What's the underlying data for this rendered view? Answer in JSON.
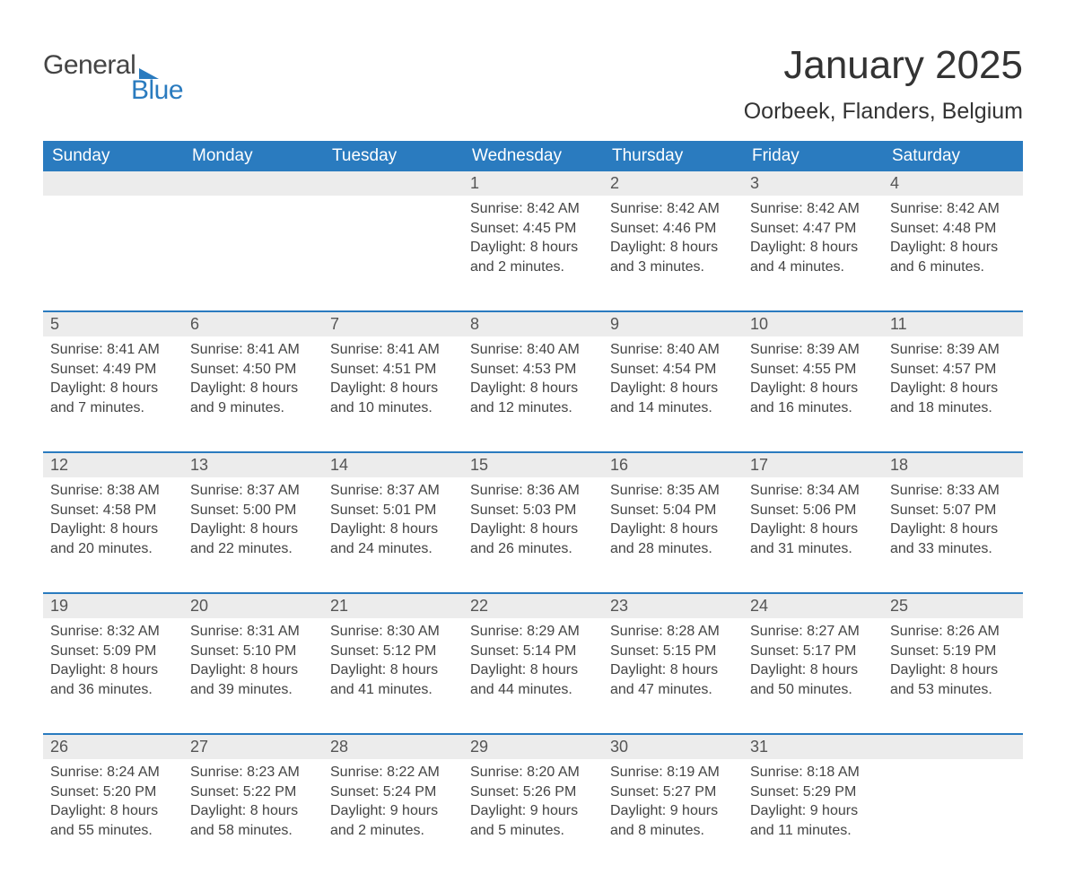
{
  "logo": {
    "line1": "General",
    "line2": "Blue"
  },
  "title": "January 2025",
  "location": "Oorbeek, Flanders, Belgium",
  "colors": {
    "header_bg": "#2a7bbf",
    "header_text": "#ffffff",
    "daynum_bg": "#ececec",
    "border_top": "#2a7bbf",
    "text": "#444444",
    "logo_text": "#444444",
    "logo_blue": "#2a7bbf"
  },
  "day_names": [
    "Sunday",
    "Monday",
    "Tuesday",
    "Wednesday",
    "Thursday",
    "Friday",
    "Saturday"
  ],
  "weeks": [
    [
      null,
      null,
      null,
      {
        "d": "1",
        "sunrise": "8:42 AM",
        "sunset": "4:45 PM",
        "daylight": "8 hours and 2 minutes."
      },
      {
        "d": "2",
        "sunrise": "8:42 AM",
        "sunset": "4:46 PM",
        "daylight": "8 hours and 3 minutes."
      },
      {
        "d": "3",
        "sunrise": "8:42 AM",
        "sunset": "4:47 PM",
        "daylight": "8 hours and 4 minutes."
      },
      {
        "d": "4",
        "sunrise": "8:42 AM",
        "sunset": "4:48 PM",
        "daylight": "8 hours and 6 minutes."
      }
    ],
    [
      {
        "d": "5",
        "sunrise": "8:41 AM",
        "sunset": "4:49 PM",
        "daylight": "8 hours and 7 minutes."
      },
      {
        "d": "6",
        "sunrise": "8:41 AM",
        "sunset": "4:50 PM",
        "daylight": "8 hours and 9 minutes."
      },
      {
        "d": "7",
        "sunrise": "8:41 AM",
        "sunset": "4:51 PM",
        "daylight": "8 hours and 10 minutes."
      },
      {
        "d": "8",
        "sunrise": "8:40 AM",
        "sunset": "4:53 PM",
        "daylight": "8 hours and 12 minutes."
      },
      {
        "d": "9",
        "sunrise": "8:40 AM",
        "sunset": "4:54 PM",
        "daylight": "8 hours and 14 minutes."
      },
      {
        "d": "10",
        "sunrise": "8:39 AM",
        "sunset": "4:55 PM",
        "daylight": "8 hours and 16 minutes."
      },
      {
        "d": "11",
        "sunrise": "8:39 AM",
        "sunset": "4:57 PM",
        "daylight": "8 hours and 18 minutes."
      }
    ],
    [
      {
        "d": "12",
        "sunrise": "8:38 AM",
        "sunset": "4:58 PM",
        "daylight": "8 hours and 20 minutes."
      },
      {
        "d": "13",
        "sunrise": "8:37 AM",
        "sunset": "5:00 PM",
        "daylight": "8 hours and 22 minutes."
      },
      {
        "d": "14",
        "sunrise": "8:37 AM",
        "sunset": "5:01 PM",
        "daylight": "8 hours and 24 minutes."
      },
      {
        "d": "15",
        "sunrise": "8:36 AM",
        "sunset": "5:03 PM",
        "daylight": "8 hours and 26 minutes."
      },
      {
        "d": "16",
        "sunrise": "8:35 AM",
        "sunset": "5:04 PM",
        "daylight": "8 hours and 28 minutes."
      },
      {
        "d": "17",
        "sunrise": "8:34 AM",
        "sunset": "5:06 PM",
        "daylight": "8 hours and 31 minutes."
      },
      {
        "d": "18",
        "sunrise": "8:33 AM",
        "sunset": "5:07 PM",
        "daylight": "8 hours and 33 minutes."
      }
    ],
    [
      {
        "d": "19",
        "sunrise": "8:32 AM",
        "sunset": "5:09 PM",
        "daylight": "8 hours and 36 minutes."
      },
      {
        "d": "20",
        "sunrise": "8:31 AM",
        "sunset": "5:10 PM",
        "daylight": "8 hours and 39 minutes."
      },
      {
        "d": "21",
        "sunrise": "8:30 AM",
        "sunset": "5:12 PM",
        "daylight": "8 hours and 41 minutes."
      },
      {
        "d": "22",
        "sunrise": "8:29 AM",
        "sunset": "5:14 PM",
        "daylight": "8 hours and 44 minutes."
      },
      {
        "d": "23",
        "sunrise": "8:28 AM",
        "sunset": "5:15 PM",
        "daylight": "8 hours and 47 minutes."
      },
      {
        "d": "24",
        "sunrise": "8:27 AM",
        "sunset": "5:17 PM",
        "daylight": "8 hours and 50 minutes."
      },
      {
        "d": "25",
        "sunrise": "8:26 AM",
        "sunset": "5:19 PM",
        "daylight": "8 hours and 53 minutes."
      }
    ],
    [
      {
        "d": "26",
        "sunrise": "8:24 AM",
        "sunset": "5:20 PM",
        "daylight": "8 hours and 55 minutes."
      },
      {
        "d": "27",
        "sunrise": "8:23 AM",
        "sunset": "5:22 PM",
        "daylight": "8 hours and 58 minutes."
      },
      {
        "d": "28",
        "sunrise": "8:22 AM",
        "sunset": "5:24 PM",
        "daylight": "9 hours and 2 minutes."
      },
      {
        "d": "29",
        "sunrise": "8:20 AM",
        "sunset": "5:26 PM",
        "daylight": "9 hours and 5 minutes."
      },
      {
        "d": "30",
        "sunrise": "8:19 AM",
        "sunset": "5:27 PM",
        "daylight": "9 hours and 8 minutes."
      },
      {
        "d": "31",
        "sunrise": "8:18 AM",
        "sunset": "5:29 PM",
        "daylight": "9 hours and 11 minutes."
      },
      null
    ]
  ],
  "labels": {
    "sunrise": "Sunrise: ",
    "sunset": "Sunset: ",
    "daylight": "Daylight: "
  }
}
